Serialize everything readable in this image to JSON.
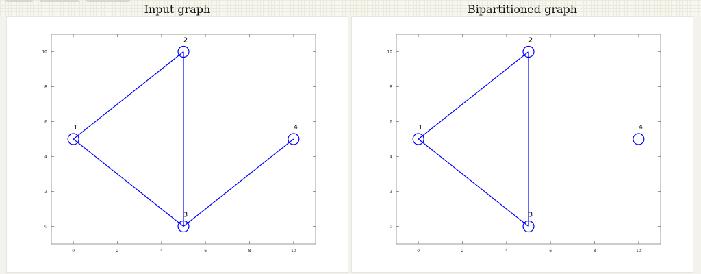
{
  "panels": [
    {
      "title": "Input graph",
      "nodes": [
        {
          "id": "1",
          "x": 0,
          "y": 5
        },
        {
          "id": "2",
          "x": 5,
          "y": 10
        },
        {
          "id": "3",
          "x": 5,
          "y": 0
        },
        {
          "id": "4",
          "x": 10,
          "y": 5
        }
      ],
      "edges": [
        [
          "1",
          "2"
        ],
        [
          "1",
          "3"
        ],
        [
          "2",
          "3"
        ],
        [
          "3",
          "4"
        ]
      ]
    },
    {
      "title": "Bipartitioned graph",
      "nodes": [
        {
          "id": "1",
          "x": 0,
          "y": 5
        },
        {
          "id": "2",
          "x": 5,
          "y": 10
        },
        {
          "id": "3",
          "x": 5,
          "y": 0
        },
        {
          "id": "4",
          "x": 10,
          "y": 5
        }
      ],
      "edges": [
        [
          "1",
          "2"
        ],
        [
          "1",
          "3"
        ],
        [
          "2",
          "3"
        ]
      ]
    }
  ],
  "axes": {
    "xlim": [
      -1,
      11
    ],
    "ylim": [
      -1,
      11
    ],
    "xticks": [
      "0",
      "2",
      "4",
      "6",
      "8",
      "10"
    ],
    "yticks": [
      "0",
      "2",
      "4",
      "6",
      "8",
      "10"
    ]
  },
  "colors": {
    "graph": "#0000ff",
    "axis": "#7f7f7f"
  }
}
